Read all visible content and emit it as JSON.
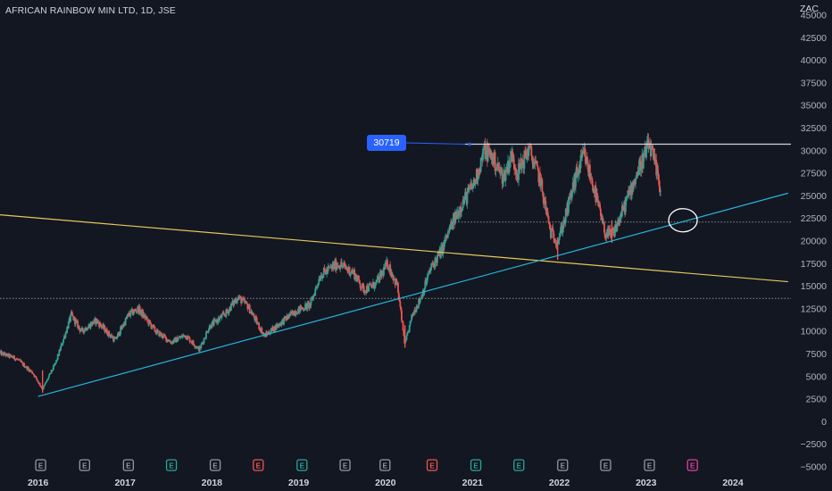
{
  "header": {
    "title": "AFRICAN RAINBOW MIN LTD, 1D, JSE",
    "currency": "ZAC"
  },
  "callout_label": "30719",
  "earnings_badge_letter": "E",
  "chart_data": {
    "type": "candlestick",
    "symbol": "AFRICAN RAINBOW MIN LTD",
    "interval": "1D",
    "exchange": "JSE",
    "currency": "ZAC",
    "ylim": [
      -5000,
      45000
    ],
    "y_ticks": [
      45000,
      42500,
      40000,
      37500,
      35000,
      32500,
      30000,
      27500,
      25000,
      22500,
      20000,
      17500,
      15000,
      12500,
      10000,
      7500,
      5000,
      2500,
      0,
      -2500,
      -5000
    ],
    "xlim": [
      "2015-07-25",
      "2024-09-01"
    ],
    "x_ticks": [
      "2016",
      "2017",
      "2018",
      "2019",
      "2020",
      "2021",
      "2022",
      "2023",
      "2024"
    ],
    "price_path": [
      [
        "2015-07-25",
        7600
      ],
      [
        "2015-10-01",
        7000
      ],
      [
        "2015-12-10",
        5400
      ],
      [
        "2016-01-20",
        3600
      ],
      [
        "2016-03-15",
        6500
      ],
      [
        "2016-05-20",
        11800
      ],
      [
        "2016-07-01",
        10000
      ],
      [
        "2016-09-01",
        11200
      ],
      [
        "2016-11-20",
        9000
      ],
      [
        "2017-01-15",
        11800
      ],
      [
        "2017-02-25",
        12500
      ],
      [
        "2017-05-10",
        10000
      ],
      [
        "2017-07-15",
        8800
      ],
      [
        "2017-09-10",
        9600
      ],
      [
        "2017-11-10",
        8000
      ],
      [
        "2017-12-20",
        10500
      ],
      [
        "2018-03-01",
        12000
      ],
      [
        "2018-04-20",
        13800
      ],
      [
        "2018-06-01",
        12800
      ],
      [
        "2018-08-10",
        9500
      ],
      [
        "2018-10-20",
        11000
      ],
      [
        "2018-12-15",
        12200
      ],
      [
        "2019-02-20",
        13000
      ],
      [
        "2019-04-01",
        16200
      ],
      [
        "2019-06-15",
        17500
      ],
      [
        "2019-08-20",
        16500
      ],
      [
        "2019-10-01",
        14600
      ],
      [
        "2019-11-20",
        15200
      ],
      [
        "2020-01-10",
        17500
      ],
      [
        "2020-02-20",
        15000
      ],
      [
        "2020-03-23",
        8500
      ],
      [
        "2020-04-25",
        12000
      ],
      [
        "2020-05-25",
        13500
      ],
      [
        "2020-07-10",
        17000
      ],
      [
        "2020-08-25",
        19000
      ],
      [
        "2020-09-30",
        21500
      ],
      [
        "2020-11-15",
        24000
      ],
      [
        "2021-01-10",
        26500
      ],
      [
        "2021-02-20",
        30000
      ],
      [
        "2021-03-20",
        29500
      ],
      [
        "2021-05-10",
        27000
      ],
      [
        "2021-06-15",
        29500
      ],
      [
        "2021-07-10",
        27500
      ],
      [
        "2021-08-25",
        30200
      ],
      [
        "2021-10-10",
        27000
      ],
      [
        "2021-11-25",
        21000
      ],
      [
        "2021-12-25",
        20000
      ],
      [
        "2022-01-25",
        22500
      ],
      [
        "2022-03-10",
        27000
      ],
      [
        "2022-04-15",
        29600
      ],
      [
        "2022-05-25",
        26000
      ],
      [
        "2022-07-10",
        21000
      ],
      [
        "2022-08-10",
        20500
      ],
      [
        "2022-09-20",
        23000
      ],
      [
        "2022-10-25",
        25500
      ],
      [
        "2022-12-01",
        28000
      ],
      [
        "2023-01-15",
        30700
      ],
      [
        "2023-02-01",
        29000
      ],
      [
        "2023-02-25",
        26500
      ],
      [
        "2023-03-05",
        25600
      ]
    ],
    "low_markers": [
      {
        "date": "2016-01-20",
        "low": 3200
      },
      {
        "date": "2020-03-23",
        "low": 8200
      },
      {
        "date": "2021-12-25",
        "low": 17900
      },
      {
        "date": "2022-08-10",
        "low": 19800
      }
    ],
    "drawings": {
      "resistance_line": {
        "value": 30719,
        "from": "2020-12-01",
        "color": "#d1d4dc"
      },
      "ascending_trendline": {
        "points": [
          [
            "2016-01-01",
            2800
          ],
          [
            "2024-08-20",
            25300
          ]
        ],
        "color": "#26b5d9"
      },
      "descending_trendline": {
        "points": [
          [
            "2015-07-25",
            22900
          ],
          [
            "2024-08-20",
            15500
          ]
        ],
        "color": "#e3c85a"
      },
      "dotted_levels": [
        {
          "value": 22100,
          "from": "2020-10-20",
          "color": "#8a8e99"
        },
        {
          "value": 13650,
          "from": "2015-07-25",
          "color": "#8a8e99"
        }
      ],
      "highlight_circle": {
        "date": "2023-06-05",
        "value": 22300,
        "color": "#ffffff"
      }
    },
    "earnings_events": [
      {
        "date": "2016-01-12",
        "color": "#9598a1"
      },
      {
        "date": "2016-07-15",
        "color": "#9598a1"
      },
      {
        "date": "2017-01-15",
        "color": "#9598a1"
      },
      {
        "date": "2017-07-15",
        "color": "#26a69a"
      },
      {
        "date": "2018-01-15",
        "color": "#9598a1"
      },
      {
        "date": "2018-07-15",
        "color": "#ef5350"
      },
      {
        "date": "2019-01-15",
        "color": "#26a69a"
      },
      {
        "date": "2019-07-15",
        "color": "#9598a1"
      },
      {
        "date": "2019-12-30",
        "color": "#9598a1"
      },
      {
        "date": "2020-07-15",
        "color": "#ef5350"
      },
      {
        "date": "2021-01-15",
        "color": "#26a69a"
      },
      {
        "date": "2021-07-15",
        "color": "#26a69a"
      },
      {
        "date": "2022-01-15",
        "color": "#9598a1"
      },
      {
        "date": "2022-07-15",
        "color": "#9598a1"
      },
      {
        "date": "2023-01-15",
        "color": "#9598a1"
      },
      {
        "date": "2023-07-15",
        "color": "#e040a0"
      }
    ],
    "colors": {
      "background": "#131722",
      "up": "#26a69a",
      "down": "#ef5350",
      "accent": "#2962ff"
    },
    "grid": false,
    "legend": "none"
  }
}
